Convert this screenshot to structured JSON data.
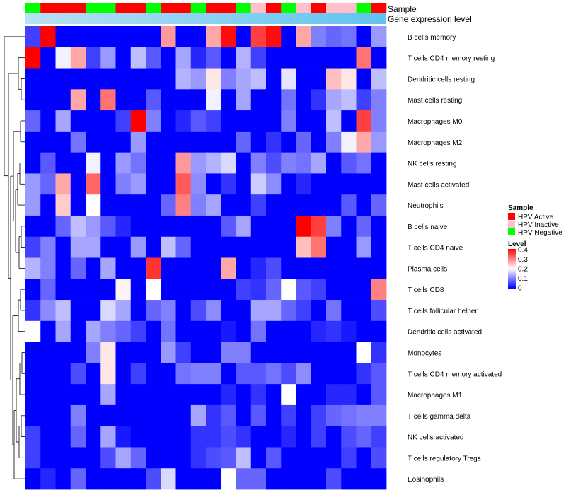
{
  "chart_data": {
    "type": "heatmap",
    "title": "",
    "annotation_labels": {
      "sample": "Sample",
      "gene_level": "Gene expression level"
    },
    "legend": {
      "sample_title": "Sample",
      "sample_entries": [
        {
          "label": "HPV Active",
          "color": "#ff0000"
        },
        {
          "label": "HPV Inactive",
          "color": "#ffc0cb"
        },
        {
          "label": "HPV Negative",
          "color": "#00ff00"
        }
      ],
      "level_title": "Level",
      "level_ticks": [
        "0.4",
        "0.3",
        "0.2",
        "0.1",
        "0"
      ],
      "level_range": [
        0,
        0.4
      ],
      "colors": {
        "low": "#0000ff",
        "mid": "#ffffff",
        "high": "#ff0000"
      }
    },
    "sample_groups": [
      "N",
      "A",
      "A",
      "A",
      "N",
      "N",
      "A",
      "A",
      "N",
      "A",
      "A",
      "N",
      "A",
      "A",
      "N",
      "I",
      "A",
      "N",
      "I",
      "A",
      "I",
      "I",
      "N",
      "A"
    ],
    "group_colors": {
      "A": "#ff0000",
      "I": "#ffc0cb",
      "N": "#00ff00"
    },
    "gene_level_color_light": "#b8e0f6",
    "gene_level_color_dark": "#5fc3ef",
    "rows": [
      "B cells memory",
      "T cells CD4 memory resting",
      "Dendritic cells resting",
      "Mast cells resting",
      "Macrophages M0",
      "Macrophages M2",
      "NK cells resting",
      "Mast cells activated",
      "Neutrophils",
      "B cells naive",
      "T cells CD4 naive",
      "Plasma cells",
      "T cells CD8",
      "T cells follicular helper",
      "Dendritic cells activated",
      "Monocytes",
      "T cells CD4 memory activated",
      "Macrophages M1",
      "T cells gamma delta",
      "NK cells activated",
      "T cells regulatory  Tregs",
      "Eosinophils"
    ],
    "values": [
      [
        0.05,
        0.4,
        0,
        0,
        0,
        0,
        0,
        0,
        0,
        0.28,
        0,
        0,
        0.27,
        0.39,
        0,
        0.35,
        0.39,
        0,
        0.27,
        0.1,
        0.08,
        0.09,
        0,
        0.12
      ],
      [
        0.4,
        0,
        0.19,
        0.27,
        0.05,
        0.12,
        0,
        0.15,
        0.07,
        0,
        0.13,
        0.03,
        0.07,
        0,
        0.14,
        0.05,
        0,
        0,
        0,
        0,
        0,
        0,
        0.31,
        0
      ],
      [
        0,
        0,
        0,
        0,
        0,
        0,
        0,
        0,
        0,
        0,
        0.14,
        0.12,
        0.22,
        0.1,
        0.13,
        0.15,
        0,
        0.18,
        0,
        0,
        0.25,
        0.22,
        0,
        0.15
      ],
      [
        0,
        0,
        0,
        0.27,
        0,
        0.31,
        0,
        0,
        0.07,
        0,
        0,
        0,
        0.19,
        0,
        0.13,
        0,
        0,
        0.09,
        0,
        0.04,
        0.13,
        0.15,
        0.05,
        0.1
      ],
      [
        0.08,
        0,
        0.13,
        0,
        0,
        0,
        0.05,
        0.4,
        0.1,
        0,
        0.03,
        0.07,
        0.05,
        0,
        0,
        0,
        0,
        0.1,
        0,
        0,
        0.15,
        0,
        0.35,
        0.1
      ],
      [
        0,
        0,
        0,
        0.09,
        0,
        0,
        0,
        0.12,
        0,
        0,
        0,
        0,
        0,
        0,
        0.08,
        0,
        0.04,
        0,
        0.08,
        0,
        0.1,
        0.19,
        0.27,
        0.12
      ],
      [
        0,
        0.07,
        0,
        0,
        0.19,
        0,
        0.12,
        0.09,
        0,
        0,
        0.28,
        0.12,
        0.14,
        0.17,
        0,
        0.1,
        0.06,
        0.1,
        0.09,
        0.13,
        0,
        0.07,
        0.09,
        0
      ],
      [
        0.12,
        0.08,
        0.27,
        0,
        0.32,
        0,
        0.1,
        0.12,
        0,
        0,
        0.33,
        0.11,
        0,
        0.04,
        0,
        0.16,
        0.11,
        0,
        0.03,
        0,
        0,
        0,
        0,
        0
      ],
      [
        0.12,
        0,
        0.24,
        0,
        0.2,
        0,
        0,
        0,
        0,
        0.08,
        0.3,
        0.1,
        0.13,
        0,
        0,
        0.05,
        0,
        0,
        0,
        0,
        0,
        0.07,
        0,
        0.08
      ],
      [
        0,
        0,
        0.08,
        0.15,
        0.12,
        0.07,
        0.03,
        0,
        0,
        0,
        0,
        0,
        0,
        0.07,
        0.13,
        0,
        0,
        0,
        0.4,
        0.35,
        0.1,
        0,
        0.08,
        0
      ],
      [
        0.05,
        0.1,
        0,
        0.13,
        0.13,
        0,
        0,
        0.12,
        0,
        0.15,
        0.08,
        0,
        0,
        0,
        0,
        0,
        0,
        0,
        0.25,
        0.31,
        0,
        0,
        0.12,
        0
      ],
      [
        0.14,
        0.1,
        0,
        0.08,
        0,
        0.13,
        0,
        0,
        0.36,
        0,
        0,
        0,
        0,
        0.27,
        0,
        0.03,
        0.06,
        0,
        0,
        0,
        0,
        0,
        0,
        0
      ],
      [
        0,
        0.08,
        0,
        0,
        0,
        0,
        0.21,
        0,
        0.2,
        0,
        0,
        0,
        0,
        0,
        0.05,
        0.04,
        0.08,
        0.2,
        0.07,
        0.05,
        0,
        0,
        0,
        0.3
      ],
      [
        0.04,
        0.11,
        0.15,
        0,
        0,
        0.17,
        0.13,
        0,
        0.08,
        0.1,
        0,
        0.06,
        0.11,
        0,
        0,
        0.13,
        0.13,
        0.08,
        0.05,
        0,
        0.09,
        0,
        0,
        0.06
      ],
      [
        0.2,
        0,
        0.13,
        0,
        0.13,
        0.1,
        0.08,
        0.05,
        0,
        0.09,
        0,
        0,
        0,
        0.02,
        0,
        0.09,
        0,
        0,
        0,
        0.03,
        0.04,
        0.02,
        0,
        0
      ],
      [
        0,
        0,
        0,
        0,
        0.1,
        0.22,
        0,
        0,
        0,
        0.12,
        0.05,
        0,
        0,
        0.1,
        0.1,
        0,
        0,
        0,
        0,
        0,
        0,
        0,
        0.2,
        0.04
      ],
      [
        0,
        0,
        0,
        0.06,
        0,
        0.22,
        0,
        0.05,
        0,
        0,
        0.09,
        0.1,
        0.1,
        0,
        0.07,
        0.07,
        0.09,
        0.06,
        0.11,
        0,
        0,
        0,
        0.04,
        0.07
      ],
      [
        0,
        0,
        0,
        0,
        0,
        0.13,
        0,
        0,
        0,
        0,
        0,
        0,
        0,
        0.03,
        0,
        0.04,
        0,
        0.2,
        0,
        0,
        0.03,
        0.03,
        0,
        0.07
      ],
      [
        0,
        0,
        0,
        0.1,
        0,
        0,
        0,
        0,
        0,
        0,
        0,
        0.13,
        0.04,
        0.07,
        0,
        0.07,
        0,
        0.05,
        0,
        0.05,
        0.08,
        0.09,
        0.1,
        0.1
      ],
      [
        0.05,
        0,
        0,
        0.08,
        0,
        0.13,
        0.02,
        0,
        0,
        0,
        0,
        0.04,
        0.04,
        0.06,
        0.04,
        0,
        0,
        0.03,
        0,
        0.05,
        0,
        0.06,
        0.08,
        0.05
      ],
      [
        0.05,
        0,
        0,
        0,
        0,
        0.06,
        0.13,
        0.08,
        0,
        0,
        0,
        0.04,
        0.06,
        0.07,
        0.15,
        0,
        0.07,
        0,
        0,
        0,
        0,
        0.05,
        0,
        0.06
      ],
      [
        0,
        0.03,
        0,
        0.08,
        0,
        0,
        0,
        0,
        0.06,
        0.17,
        0,
        0,
        0,
        0.2,
        0.08,
        0.08,
        0,
        0,
        0,
        0,
        0.06,
        0,
        0,
        0
      ]
    ]
  }
}
